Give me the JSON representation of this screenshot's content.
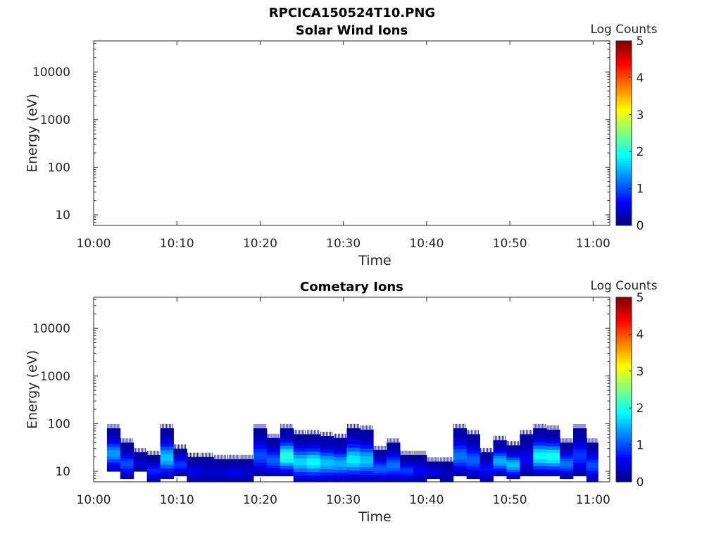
{
  "figure": {
    "filename": "RPCICA150524T10.PNG"
  },
  "colorbar": {
    "label": "Log Counts",
    "ticks": [
      "0",
      "1",
      "2",
      "3",
      "4",
      "5"
    ],
    "range": [
      0,
      5
    ],
    "colormap": "jet"
  },
  "chart_data": [
    {
      "type": "heatmap",
      "title": "Solar Wind Ions",
      "xlabel": "Time",
      "ylabel": "Energy (eV)",
      "x_ticks": [
        "10:00",
        "10:10",
        "10:20",
        "10:30",
        "10:40",
        "10:50",
        "11:00"
      ],
      "x_range_minutes": [
        0,
        62
      ],
      "y_scale": "log",
      "y_ticks": [
        10,
        100,
        1000,
        10000
      ],
      "y_tick_labels": [
        "10",
        "100",
        "1000",
        "10000"
      ],
      "y_range": [
        6,
        45000
      ],
      "blocks": []
    },
    {
      "type": "heatmap",
      "title": "Cometary Ions",
      "xlabel": "Time",
      "ylabel": "Energy (eV)",
      "x_ticks": [
        "10:00",
        "10:10",
        "10:20",
        "10:30",
        "10:40",
        "10:50",
        "11:00"
      ],
      "x_range_minutes": [
        0,
        62
      ],
      "y_scale": "log",
      "y_ticks": [
        10,
        100,
        1000,
        10000
      ],
      "y_tick_labels": [
        "10",
        "100",
        "1000",
        "10000"
      ],
      "y_range": [
        6,
        45000
      ],
      "blocks": [
        {
          "t0": 1.6,
          "t1": 3.2,
          "e0": 10,
          "e1": 80,
          "peak": 1.4
        },
        {
          "t0": 3.2,
          "t1": 4.8,
          "e0": 7,
          "e1": 40,
          "peak": 1.0
        },
        {
          "t0": 4.8,
          "t1": 6.4,
          "e0": 10,
          "e1": 25,
          "peak": 0.4
        },
        {
          "t0": 6.4,
          "t1": 8.0,
          "e0": 6,
          "e1": 22,
          "peak": 0.8
        },
        {
          "t0": 8.0,
          "t1": 9.6,
          "e0": 7,
          "e1": 80,
          "peak": 1.6
        },
        {
          "t0": 9.6,
          "t1": 11.2,
          "e0": 8,
          "e1": 30,
          "peak": 0.9
        },
        {
          "t0": 11.2,
          "t1": 12.8,
          "e0": 6,
          "e1": 20,
          "peak": 0.5
        },
        {
          "t0": 12.8,
          "t1": 14.4,
          "e0": 6,
          "e1": 20,
          "peak": 0.4
        },
        {
          "t0": 14.4,
          "t1": 16.0,
          "e0": 6,
          "e1": 18,
          "peak": 0.4
        },
        {
          "t0": 16.0,
          "t1": 17.6,
          "e0": 6,
          "e1": 18,
          "peak": 0.5
        },
        {
          "t0": 17.6,
          "t1": 19.2,
          "e0": 6,
          "e1": 18,
          "peak": 0.4
        },
        {
          "t0": 19.2,
          "t1": 20.8,
          "e0": 8,
          "e1": 80,
          "peak": 1.0
        },
        {
          "t0": 20.8,
          "t1": 22.4,
          "e0": 8,
          "e1": 50,
          "peak": 1.1
        },
        {
          "t0": 22.4,
          "t1": 24.0,
          "e0": 8,
          "e1": 80,
          "peak": 2.1
        },
        {
          "t0": 24.0,
          "t1": 25.6,
          "e0": 6,
          "e1": 60,
          "peak": 1.7
        },
        {
          "t0": 25.6,
          "t1": 27.2,
          "e0": 6,
          "e1": 60,
          "peak": 1.9
        },
        {
          "t0": 27.2,
          "t1": 28.8,
          "e0": 6,
          "e1": 55,
          "peak": 1.6
        },
        {
          "t0": 28.8,
          "t1": 30.4,
          "e0": 6,
          "e1": 50,
          "peak": 1.5
        },
        {
          "t0": 30.4,
          "t1": 32.0,
          "e0": 6,
          "e1": 80,
          "peak": 1.8
        },
        {
          "t0": 32.0,
          "t1": 33.6,
          "e0": 6,
          "e1": 75,
          "peak": 1.6
        },
        {
          "t0": 33.6,
          "t1": 35.2,
          "e0": 6,
          "e1": 28,
          "peak": 1.1
        },
        {
          "t0": 35.2,
          "t1": 36.8,
          "e0": 6,
          "e1": 40,
          "peak": 1.2
        },
        {
          "t0": 36.8,
          "t1": 38.4,
          "e0": 6,
          "e1": 22,
          "peak": 0.9
        },
        {
          "t0": 38.4,
          "t1": 40.0,
          "e0": 6,
          "e1": 22,
          "peak": 0.6
        },
        {
          "t0": 40.0,
          "t1": 41.6,
          "e0": 7,
          "e1": 16,
          "peak": 0.5
        },
        {
          "t0": 41.6,
          "t1": 43.2,
          "e0": 6,
          "e1": 16,
          "peak": 0.3
        },
        {
          "t0": 43.2,
          "t1": 44.8,
          "e0": 8,
          "e1": 80,
          "peak": 1.2
        },
        {
          "t0": 44.8,
          "t1": 46.4,
          "e0": 7,
          "e1": 60,
          "peak": 1.1
        },
        {
          "t0": 46.4,
          "t1": 48.0,
          "e0": 6,
          "e1": 25,
          "peak": 0.7
        },
        {
          "t0": 48.0,
          "t1": 49.6,
          "e0": 8,
          "e1": 45,
          "peak": 1.5
        },
        {
          "t0": 49.6,
          "t1": 51.2,
          "e0": 7,
          "e1": 35,
          "peak": 1.6
        },
        {
          "t0": 51.2,
          "t1": 52.8,
          "e0": 8,
          "e1": 60,
          "peak": 0.6
        },
        {
          "t0": 52.8,
          "t1": 54.4,
          "e0": 8,
          "e1": 80,
          "peak": 1.9
        },
        {
          "t0": 54.4,
          "t1": 56.0,
          "e0": 8,
          "e1": 75,
          "peak": 2.0
        },
        {
          "t0": 56.0,
          "t1": 57.6,
          "e0": 7,
          "e1": 40,
          "peak": 1.2
        },
        {
          "t0": 57.6,
          "t1": 59.2,
          "e0": 8,
          "e1": 80,
          "peak": 0.9
        },
        {
          "t0": 59.2,
          "t1": 60.6,
          "e0": 6,
          "e1": 40,
          "peak": 1.0
        }
      ]
    }
  ]
}
